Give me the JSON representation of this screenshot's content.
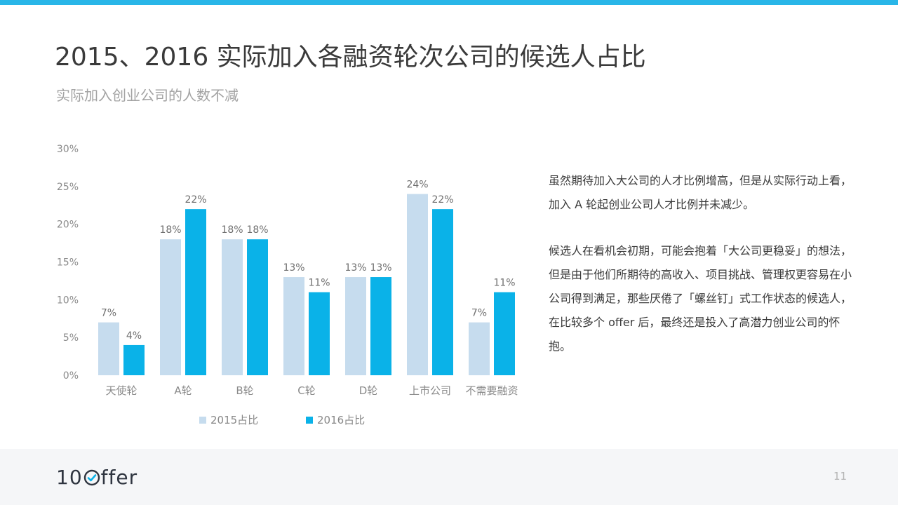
{
  "header": {
    "title": "2015、2016 实际加入各融资轮次公司的候选人占比",
    "subtitle": "实际加入创业公司的人数不减"
  },
  "colors": {
    "accent": "#29b6e8",
    "series_2015": "#c6dcee",
    "series_2016": "#0ab2e8",
    "title": "#3a3a3a",
    "subtitle": "#a3a3a3"
  },
  "chart_data": {
    "type": "bar",
    "categories": [
      "天使轮",
      "A轮",
      "B轮",
      "C轮",
      "D轮",
      "上市公司",
      "不需要融资"
    ],
    "series": [
      {
        "name": "2015占比",
        "values": [
          7,
          18,
          18,
          13,
          13,
          24,
          7
        ],
        "labels": [
          "7%",
          "18%",
          "18%",
          "13%",
          "13%",
          "24%",
          "7%"
        ]
      },
      {
        "name": "2016占比",
        "values": [
          4,
          22,
          18,
          11,
          13,
          22,
          11
        ],
        "labels": [
          "4%",
          "22%",
          "18%",
          "11%",
          "13%",
          "22%",
          "11%"
        ]
      }
    ],
    "yticks": [
      "0%",
      "5%",
      "10%",
      "15%",
      "20%",
      "25%",
      "30%"
    ],
    "ylim": [
      0,
      30
    ],
    "grid": false,
    "legend_position": "bottom"
  },
  "description": {
    "paragraph1": "虽然期待加入大公司的人才比例增高，但是从实际行动上看，加入 A 轮起创业公司人才比例并未减少。",
    "paragraph2": "候选人在看机会初期，可能会抱着「大公司更稳妥」的想法，但是由于他们所期待的高收入、项目挑战、管理权更容易在小公司得到满足，那些厌倦了「螺丝钉」式工作状态的候选人，在比较多个 offer 后，最终还是投入了高潜力创业公司的怀抱。"
  },
  "footer": {
    "logo_left": "10",
    "logo_right": "ffer",
    "page_number": "11"
  }
}
